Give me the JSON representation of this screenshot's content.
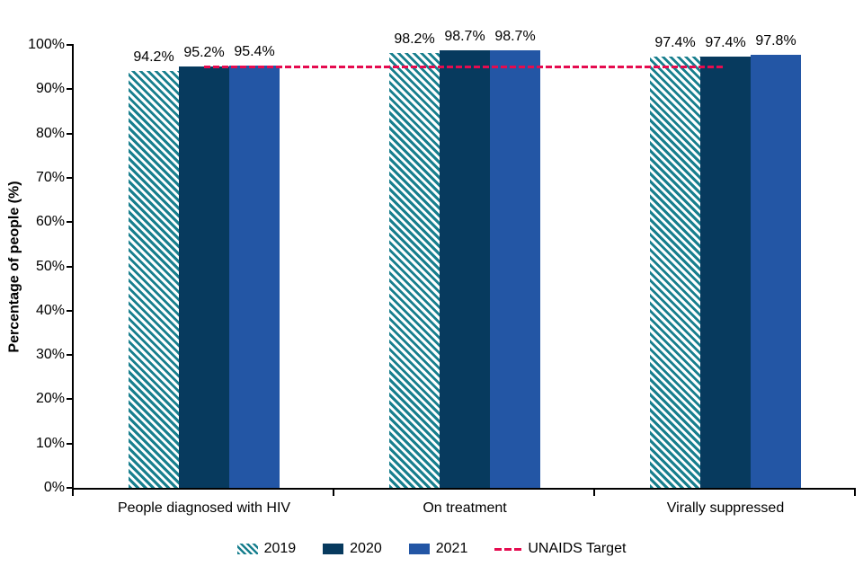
{
  "chart_data": {
    "type": "bar",
    "title": "",
    "ylabel": "Percentage of people (%)",
    "xlabel": "",
    "ylim": [
      0,
      100
    ],
    "ytick_step": 10,
    "ytick_labels": [
      "0%",
      "10%",
      "20%",
      "30%",
      "40%",
      "50%",
      "60%",
      "70%",
      "80%",
      "90%",
      "100%"
    ],
    "grid": false,
    "legend_position": "bottom",
    "categories": [
      "People diagnosed with HIV",
      "On treatment",
      "Virally suppressed"
    ],
    "series": [
      {
        "name": "2019",
        "style": "hatched",
        "color": "#187f8e",
        "values": [
          94.2,
          98.2,
          97.4
        ],
        "data_labels": [
          "94.2%",
          "98.2%",
          "97.4%"
        ]
      },
      {
        "name": "2020",
        "style": "solid",
        "color": "#073a5e",
        "values": [
          95.2,
          98.7,
          97.4
        ],
        "data_labels": [
          "95.2%",
          "98.7%",
          "97.4%"
        ]
      },
      {
        "name": "2021",
        "style": "solid",
        "color": "#2356a5",
        "values": [
          95.4,
          98.7,
          97.8
        ],
        "data_labels": [
          "95.4%",
          "98.7%",
          "97.8%"
        ]
      }
    ],
    "target_line": {
      "label": "UNAIDS Target",
      "value": 95,
      "style": "dashed",
      "color": "#e50b4f"
    },
    "colors": {
      "axis": "#000000",
      "text": "#000000",
      "background": "#ffffff"
    }
  }
}
